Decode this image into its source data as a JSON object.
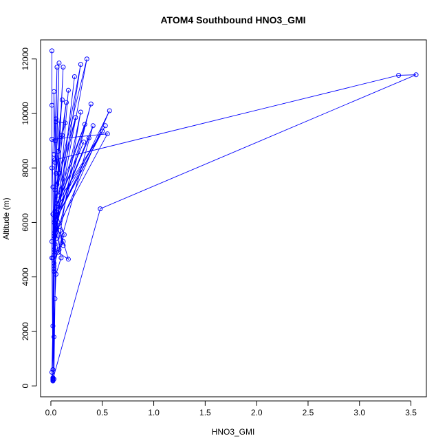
{
  "chart_data": {
    "type": "line",
    "title": "ATOM4 Southbound HNO3_GMI",
    "xlabel": "HNO3_GMI",
    "ylabel": "Altitude (m)",
    "xlim": [
      -0.1,
      3.65
    ],
    "ylim": [
      -400,
      12700
    ],
    "x_ticks": [
      "0.0",
      "0.5",
      "1.0",
      "1.5",
      "2.0",
      "2.5",
      "3.0",
      "3.5"
    ],
    "x_tick_values": [
      0.0,
      0.5,
      1.0,
      1.5,
      2.0,
      2.5,
      3.0,
      3.5
    ],
    "y_ticks": [
      "0",
      "2000",
      "4000",
      "6000",
      "8000",
      "10000",
      "12000"
    ],
    "y_tick_values": [
      0,
      2000,
      4000,
      6000,
      8000,
      10000,
      12000
    ],
    "grid": false,
    "legend": "none",
    "series_color": "#0000ff",
    "series": [
      {
        "points": [
          {
            "x": 0.01,
            "y": 12300
          },
          {
            "x": 0.01,
            "y": 10300
          },
          {
            "x": 0.01,
            "y": 8000
          },
          {
            "x": 0.01,
            "y": 5300
          },
          {
            "x": 0.01,
            "y": 4700
          },
          {
            "x": 0.02,
            "y": 200
          },
          {
            "x": 0.01,
            "y": 500
          },
          {
            "x": 0.03,
            "y": 4200
          },
          {
            "x": 0.02,
            "y": 7300
          },
          {
            "x": 0.01,
            "y": 9050
          },
          {
            "x": 0.55,
            "y": 9250
          },
          {
            "x": 0.03,
            "y": 5600
          },
          {
            "x": 0.02,
            "y": 300
          },
          {
            "x": 0.02,
            "y": 4700
          },
          {
            "x": 0.04,
            "y": 8300
          },
          {
            "x": 3.38,
            "y": 11400
          },
          {
            "x": 3.55,
            "y": 11420
          },
          {
            "x": 0.48,
            "y": 6500
          },
          {
            "x": 0.02,
            "y": 250
          },
          {
            "x": 0.02,
            "y": 2200
          },
          {
            "x": 0.04,
            "y": 6200
          },
          {
            "x": 0.08,
            "y": 11850
          },
          {
            "x": 0.03,
            "y": 6000
          },
          {
            "x": 0.03,
            "y": 250
          },
          {
            "x": 0.05,
            "y": 5800
          },
          {
            "x": 0.29,
            "y": 11800
          },
          {
            "x": 0.02,
            "y": 6300
          },
          {
            "x": 0.02,
            "y": 250
          },
          {
            "x": 0.04,
            "y": 7200
          },
          {
            "x": 0.35,
            "y": 12000
          },
          {
            "x": 0.03,
            "y": 5500
          },
          {
            "x": 0.02,
            "y": 260
          },
          {
            "x": 0.03,
            "y": 4800
          },
          {
            "x": 0.23,
            "y": 11350
          },
          {
            "x": 0.04,
            "y": 5200
          },
          {
            "x": 0.12,
            "y": 11700
          },
          {
            "x": 0.03,
            "y": 5000
          },
          {
            "x": 0.02,
            "y": 240
          },
          {
            "x": 0.03,
            "y": 4500
          },
          {
            "x": 0.17,
            "y": 10850
          },
          {
            "x": 0.05,
            "y": 5400
          },
          {
            "x": 0.39,
            "y": 10350
          },
          {
            "x": 0.04,
            "y": 5700
          },
          {
            "x": 0.02,
            "y": 230
          },
          {
            "x": 0.03,
            "y": 4300
          },
          {
            "x": 0.29,
            "y": 10050
          },
          {
            "x": 0.04,
            "y": 5500
          },
          {
            "x": 0.57,
            "y": 10100
          },
          {
            "x": 0.05,
            "y": 6100
          },
          {
            "x": 0.53,
            "y": 9550
          },
          {
            "x": 0.04,
            "y": 6400
          },
          {
            "x": 0.02,
            "y": 270
          },
          {
            "x": 0.03,
            "y": 4400
          },
          {
            "x": 0.41,
            "y": 9550
          },
          {
            "x": 0.06,
            "y": 6300
          },
          {
            "x": 0.37,
            "y": 9100
          },
          {
            "x": 0.03,
            "y": 6000
          },
          {
            "x": 0.5,
            "y": 9350
          },
          {
            "x": 0.06,
            "y": 6700
          },
          {
            "x": 0.32,
            "y": 8950
          },
          {
            "x": 0.05,
            "y": 6550
          },
          {
            "x": 0.33,
            "y": 9600
          },
          {
            "x": 0.07,
            "y": 7000
          },
          {
            "x": 0.24,
            "y": 9850
          },
          {
            "x": 0.06,
            "y": 7400
          },
          {
            "x": 0.15,
            "y": 10400
          },
          {
            "x": 0.05,
            "y": 7800
          },
          {
            "x": 0.11,
            "y": 10500
          },
          {
            "x": 0.04,
            "y": 8200
          },
          {
            "x": 0.05,
            "y": 9800
          },
          {
            "x": 0.03,
            "y": 8500
          },
          {
            "x": 0.03,
            "y": 10800
          },
          {
            "x": 0.04,
            "y": 9000
          },
          {
            "x": 0.06,
            "y": 11700
          },
          {
            "x": 0.05,
            "y": 9700
          },
          {
            "x": 0.14,
            "y": 9650
          },
          {
            "x": 0.07,
            "y": 8600
          },
          {
            "x": 0.11,
            "y": 9200
          },
          {
            "x": 0.08,
            "y": 7800
          },
          {
            "x": 0.05,
            "y": 6400
          },
          {
            "x": 0.13,
            "y": 5550
          },
          {
            "x": 0.08,
            "y": 5000
          },
          {
            "x": 0.12,
            "y": 5300
          },
          {
            "x": 0.07,
            "y": 4900
          },
          {
            "x": 0.17,
            "y": 4650
          },
          {
            "x": 0.09,
            "y": 5700
          },
          {
            "x": 0.12,
            "y": 5150
          },
          {
            "x": 0.06,
            "y": 5900
          },
          {
            "x": 0.1,
            "y": 4700
          },
          {
            "x": 0.05,
            "y": 4100
          },
          {
            "x": 0.04,
            "y": 3200
          },
          {
            "x": 0.03,
            "y": 1800
          },
          {
            "x": 0.02,
            "y": 600
          },
          {
            "x": 0.02,
            "y": 180
          }
        ]
      }
    ]
  }
}
